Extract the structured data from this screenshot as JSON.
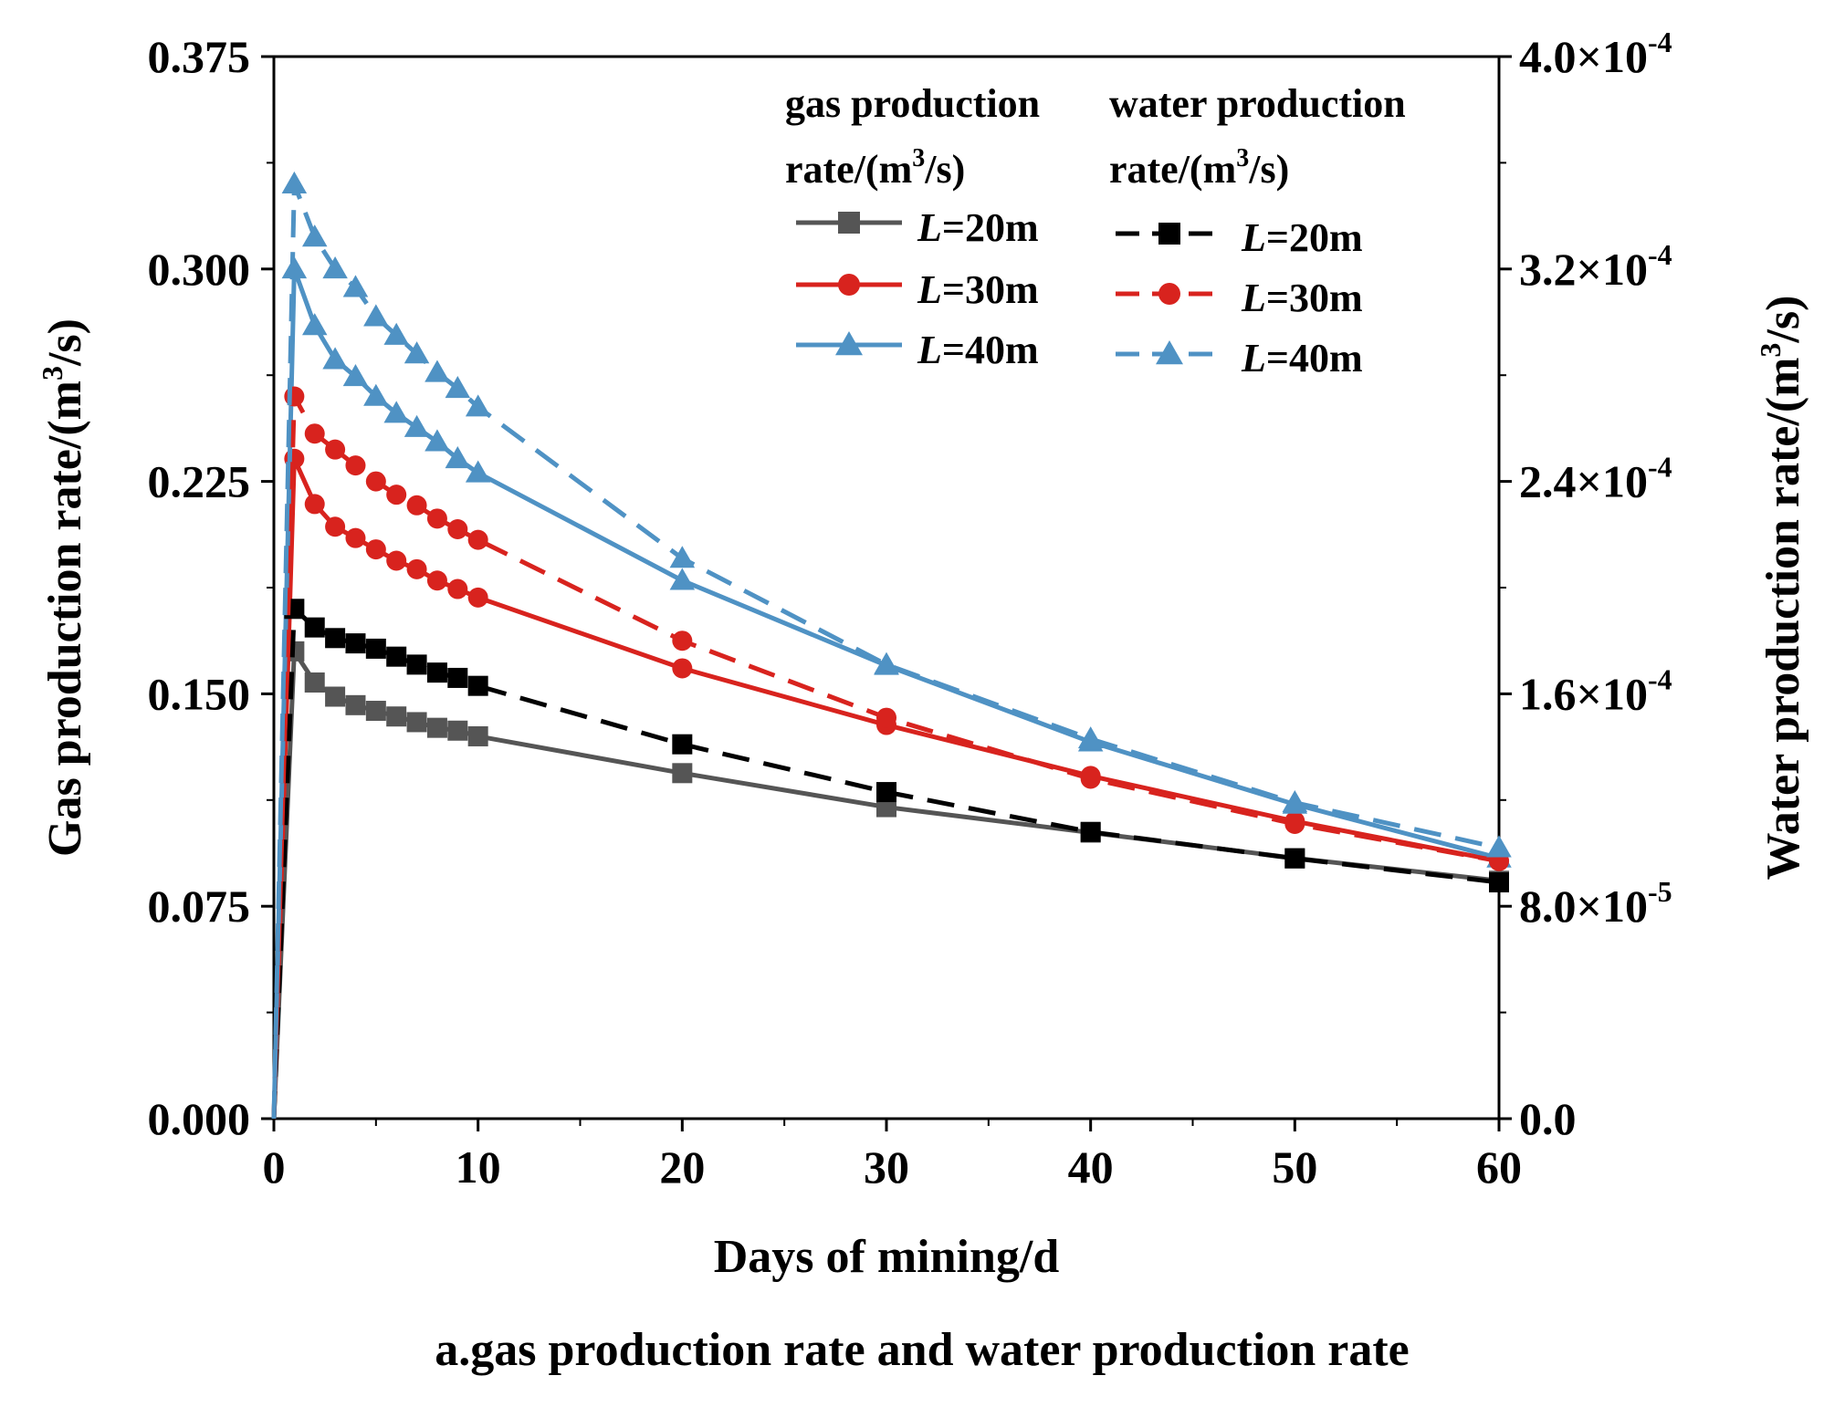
{
  "chart_data": {
    "type": "line",
    "caption": "a.gas production rate and water production rate",
    "xlabel": "Days of mining/d",
    "ylabel_left": "Gas production rate/(m",
    "ylabel_left_sup": "3",
    "ylabel_left_end": "/s)",
    "ylabel_right": "Water production rate/(m",
    "ylabel_right_sup": "3",
    "ylabel_right_end": "/s)",
    "xlim": [
      0,
      60
    ],
    "ylim_left": [
      0,
      0.375
    ],
    "ylim_right": [
      0,
      0.0004
    ],
    "x_ticks": [
      "0",
      "10",
      "20",
      "30",
      "40",
      "50",
      "60"
    ],
    "y_left_ticks": [
      "0.000",
      "0.075",
      "0.150",
      "0.225",
      "0.300",
      "0.375"
    ],
    "y_right_ticks": [
      {
        "mant": "0.0",
        "exp": ""
      },
      {
        "mant": "8.0×10",
        "exp": "-5"
      },
      {
        "mant": "1.6×10",
        "exp": "-4"
      },
      {
        "mant": "2.4×10",
        "exp": "-4"
      },
      {
        "mant": "3.2×10",
        "exp": "-4"
      },
      {
        "mant": "4.0×10",
        "exp": "-4"
      }
    ],
    "legend": {
      "gas_header_line1": "gas production",
      "gas_header_line2": "rate/(m",
      "gas_header_sup": "3",
      "gas_header_end": "/s)",
      "water_header_line1": "water production",
      "water_header_line2": "rate/(m",
      "water_header_sup": "3",
      "water_header_end": "/s)",
      "entries": [
        {
          "var": "L",
          "rest": "=20m"
        },
        {
          "var": "L",
          "rest": "=30m"
        },
        {
          "var": "L",
          "rest": "=40m"
        }
      ]
    },
    "colors": {
      "L20": "#000000",
      "L20_gas": "#555555",
      "L30": "#d8231e",
      "L40": "#4f92c4"
    },
    "series": [
      {
        "name": "gas L=20m",
        "axis": "left",
        "style": "solid",
        "marker": "square",
        "color": "#555555",
        "x": [
          0,
          1,
          2,
          3,
          4,
          5,
          6,
          7,
          8,
          9,
          10,
          20,
          30,
          40,
          50,
          60
        ],
        "y": [
          0,
          0.165,
          0.154,
          0.149,
          0.146,
          0.144,
          0.142,
          0.14,
          0.138,
          0.137,
          0.135,
          0.122,
          0.11,
          0.101,
          0.092,
          0.084
        ]
      },
      {
        "name": "gas L=30m",
        "axis": "left",
        "style": "solid",
        "marker": "circle",
        "color": "#d8231e",
        "x": [
          0,
          1,
          2,
          3,
          4,
          5,
          6,
          7,
          8,
          9,
          10,
          20,
          30,
          40,
          50,
          60
        ],
        "y": [
          0,
          0.233,
          0.217,
          0.209,
          0.205,
          0.201,
          0.197,
          0.194,
          0.19,
          0.187,
          0.184,
          0.159,
          0.139,
          0.121,
          0.105,
          0.091
        ]
      },
      {
        "name": "gas L=40m",
        "axis": "left",
        "style": "solid",
        "marker": "triangle",
        "color": "#4f92c4",
        "x": [
          0,
          1,
          2,
          3,
          4,
          5,
          6,
          7,
          8,
          9,
          10,
          20,
          30,
          40,
          50,
          60
        ],
        "y": [
          0,
          0.3,
          0.28,
          0.268,
          0.262,
          0.255,
          0.249,
          0.244,
          0.239,
          0.233,
          0.228,
          0.19,
          0.16,
          0.133,
          0.111,
          0.092
        ]
      },
      {
        "name": "water L=20m",
        "axis": "right",
        "style": "dashed",
        "marker": "square",
        "color": "#000000",
        "x": [
          0,
          1,
          2,
          3,
          4,
          5,
          6,
          7,
          8,
          9,
          10,
          20,
          30,
          40,
          50,
          60
        ],
        "y": [
          0,
          0.000192,
          0.000185,
          0.000181,
          0.000179,
          0.000177,
          0.000174,
          0.000171,
          0.000168,
          0.000166,
          0.000163,
          0.000141,
          0.000123,
          0.000108,
          9.8e-05,
          8.9e-05
        ]
      },
      {
        "name": "water L=30m",
        "axis": "right",
        "style": "dashed",
        "marker": "circle",
        "color": "#d8231e",
        "x": [
          0,
          1,
          2,
          3,
          4,
          5,
          6,
          7,
          8,
          9,
          10,
          20,
          30,
          40,
          50,
          60
        ],
        "y": [
          0,
          0.000272,
          0.000258,
          0.000252,
          0.000246,
          0.00024,
          0.000235,
          0.000231,
          0.000226,
          0.000222,
          0.000218,
          0.00018,
          0.000151,
          0.000128,
          0.000111,
          9.7e-05
        ]
      },
      {
        "name": "water L=40m",
        "axis": "right",
        "style": "dashed",
        "marker": "triangle",
        "color": "#4f92c4",
        "x": [
          0,
          1,
          2,
          3,
          4,
          5,
          6,
          7,
          8,
          9,
          10,
          20,
          30,
          40,
          50,
          60
        ],
        "y": [
          0,
          0.000352,
          0.000332,
          0.00032,
          0.000313,
          0.000302,
          0.000295,
          0.000288,
          0.000281,
          0.000275,
          0.000268,
          0.000211,
          0.000171,
          0.000143,
          0.000119,
          0.000102
        ]
      }
    ]
  }
}
